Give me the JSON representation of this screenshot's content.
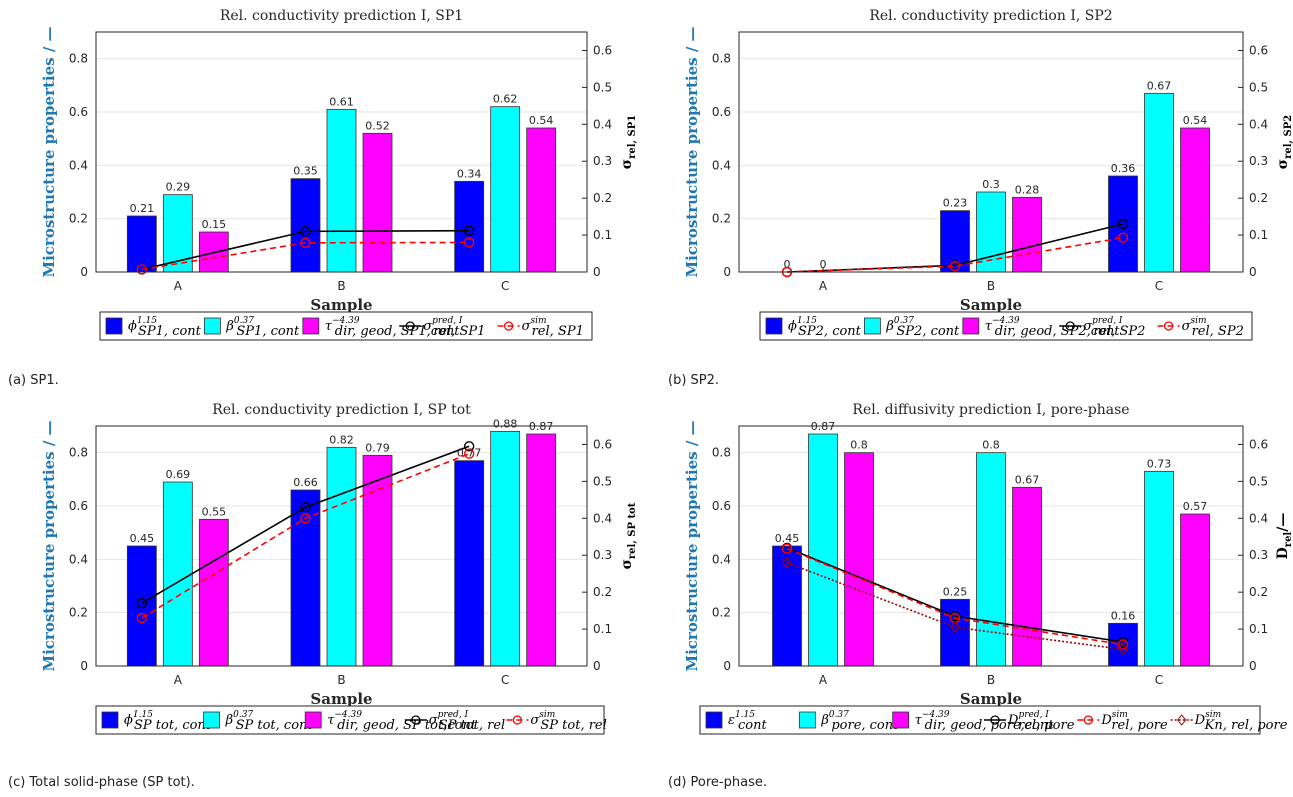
{
  "chart_data": [
    {
      "type": "bar",
      "title": "Rel. conductivity prediction I, SP1",
      "caption": "(a) SP1.",
      "xlabel": "Sample",
      "ylabel": "Microstructure properties / —",
      "y2label": "σ",
      "y2label_sub": "rel, SP1",
      "categories": [
        "A",
        "B",
        "C"
      ],
      "ylim": [
        0,
        0.9
      ],
      "y2lim": [
        0,
        0.65
      ],
      "bars": [
        {
          "base": "ϕ",
          "sup": "1.15",
          "sub": "SP1, cont",
          "color": "#0000ff",
          "values": [
            0.21,
            0.35,
            0.34
          ],
          "labels": [
            "0.21",
            "0.35",
            "0.34"
          ]
        },
        {
          "base": "β",
          "sup": "0.37",
          "sub": "SP1, cont",
          "color": "#00ffff",
          "values": [
            0.29,
            0.61,
            0.62
          ],
          "labels": [
            "0.29",
            "0.61",
            "0.62"
          ]
        },
        {
          "base": "τ",
          "sup": "−4.39",
          "sub": "dir, geod, SP1,cont",
          "color": "#ff00ff",
          "values": [
            0.15,
            0.52,
            0.54
          ],
          "labels": [
            "0.15",
            "0.52",
            "0.54"
          ]
        }
      ],
      "lines": [
        {
          "base": "σ",
          "sup": "pred, I",
          "sub": "rel, SP1",
          "color": "#000000",
          "dash": "",
          "marker": "circle",
          "values": [
            0.007,
            0.11,
            0.112
          ]
        },
        {
          "base": "σ",
          "sup": "sim",
          "sub": "rel, SP1",
          "color": "#ff0000",
          "dash": "6,4",
          "marker": "circle",
          "values": [
            0.007,
            0.079,
            0.08
          ]
        }
      ]
    },
    {
      "type": "bar",
      "title": "Rel. conductivity prediction I, SP2",
      "caption": "(b) SP2.",
      "xlabel": "Sample",
      "ylabel": "Microstructure properties / —",
      "y2label": "σ",
      "y2label_sub": "rel, SP2",
      "categories": [
        "A",
        "B",
        "C"
      ],
      "ylim": [
        0,
        0.9
      ],
      "y2lim": [
        0,
        0.65
      ],
      "bars": [
        {
          "base": "ϕ",
          "sup": "1.15",
          "sub": "SP2, cont",
          "color": "#0000ff",
          "values": [
            0,
            0.23,
            0.36
          ],
          "labels": [
            "0",
            "0.23",
            "0.36"
          ]
        },
        {
          "base": "β",
          "sup": "0.37",
          "sub": "SP2, cont",
          "color": "#00ffff",
          "values": [
            0,
            0.3,
            0.67
          ],
          "labels": [
            "0",
            "0.3",
            "0.67"
          ]
        },
        {
          "base": "τ",
          "sup": "−4.39",
          "sub": "dir, geod, SP2,cont",
          "color": "#ff00ff",
          "values": [
            0,
            0.28,
            0.54
          ],
          "labels": [
            "",
            "0.28",
            "0.54"
          ]
        }
      ],
      "lines": [
        {
          "base": "σ",
          "sup": "pred, I",
          "sub": "rel, SP2",
          "color": "#000000",
          "dash": "",
          "marker": "circle",
          "values": [
            0,
            0.018,
            0.13
          ]
        },
        {
          "base": "σ",
          "sup": "sim",
          "sub": "rel, SP2",
          "color": "#ff0000",
          "dash": "6,4",
          "marker": "circle",
          "values": [
            0,
            0.016,
            0.093
          ]
        }
      ]
    },
    {
      "type": "bar",
      "title": "Rel. conductivity prediction I, SP tot",
      "caption": "(c) Total solid-phase (SP tot).",
      "xlabel": "Sample",
      "ylabel": "Microstructure properties / —",
      "y2label": "σ",
      "y2label_sub": "rel, SP tot",
      "categories": [
        "A",
        "B",
        "C"
      ],
      "ylim": [
        0,
        0.9
      ],
      "y2lim": [
        0,
        0.65
      ],
      "bars": [
        {
          "base": "ϕ",
          "sup": "1.15",
          "sub": "SP tot, cont",
          "color": "#0000ff",
          "values": [
            0.45,
            0.66,
            0.77
          ],
          "labels": [
            "0.45",
            "0.66",
            "0.77"
          ]
        },
        {
          "base": "β",
          "sup": "0.37",
          "sub": "SP tot, cont",
          "color": "#00ffff",
          "values": [
            0.69,
            0.82,
            0.88
          ],
          "labels": [
            "0.69",
            "0.82",
            "0.88"
          ]
        },
        {
          "base": "τ",
          "sup": "−4.39",
          "sub": "dir, geod, SP tot,cont",
          "color": "#ff00ff",
          "values": [
            0.55,
            0.79,
            0.87
          ],
          "labels": [
            "0.55",
            "0.79",
            "0.87"
          ]
        }
      ],
      "lines": [
        {
          "base": "σ",
          "sup": "pred, I",
          "sub": "SP tot, rel",
          "color": "#000000",
          "dash": "",
          "marker": "circle",
          "values": [
            0.17,
            0.43,
            0.595
          ]
        },
        {
          "base": "σ",
          "sup": "sim",
          "sub": "SP tot, rel",
          "color": "#ff0000",
          "dash": "6,4",
          "marker": "circle",
          "values": [
            0.13,
            0.4,
            0.575
          ]
        }
      ]
    },
    {
      "type": "bar",
      "title": "Rel. diffusivity prediction I, pore-phase",
      "caption": "(d) Pore-phase.",
      "xlabel": "Sample",
      "ylabel": "Microstructure properties / —",
      "y2label": "D",
      "y2label_sub": "rel",
      "y2label_tail": "/—",
      "categories": [
        "A",
        "B",
        "C"
      ],
      "ylim": [
        0,
        0.9
      ],
      "y2lim": [
        0,
        0.65
      ],
      "bars": [
        {
          "base": "ε",
          "sup": "1.15",
          "sub": "cont",
          "color": "#0000ff",
          "values": [
            0.45,
            0.25,
            0.16
          ],
          "labels": [
            "0.45",
            "0.25",
            "0.16"
          ]
        },
        {
          "base": "β",
          "sup": "0.37",
          "sub": "pore, cont",
          "color": "#00ffff",
          "values": [
            0.87,
            0.8,
            0.73
          ],
          "labels": [
            "0.87",
            "0.8",
            "0.73"
          ]
        },
        {
          "base": "τ",
          "sup": "−4.39",
          "sub": "dir, geod, pore,cont",
          "color": "#ff00ff",
          "values": [
            0.8,
            0.67,
            0.57
          ],
          "labels": [
            "0.8",
            "0.67",
            "0.57"
          ]
        }
      ],
      "lines": [
        {
          "base": "D",
          "sup": "pred, I",
          "sub": "rel, pore",
          "color": "#000000",
          "dash": "",
          "marker": "circle",
          "values": [
            0.32,
            0.135,
            0.065
          ]
        },
        {
          "base": "D",
          "sup": "sim",
          "sub": "rel, pore",
          "color": "#ff0000",
          "dash": "6,4",
          "marker": "circle",
          "values": [
            0.318,
            0.13,
            0.058
          ]
        },
        {
          "base": "D",
          "sup": "sim",
          "sub": "Kn, rel, pore",
          "color": "#990000",
          "dash": "2,2",
          "marker": "diamond",
          "values": [
            0.28,
            0.105,
            0.045
          ]
        }
      ]
    }
  ]
}
